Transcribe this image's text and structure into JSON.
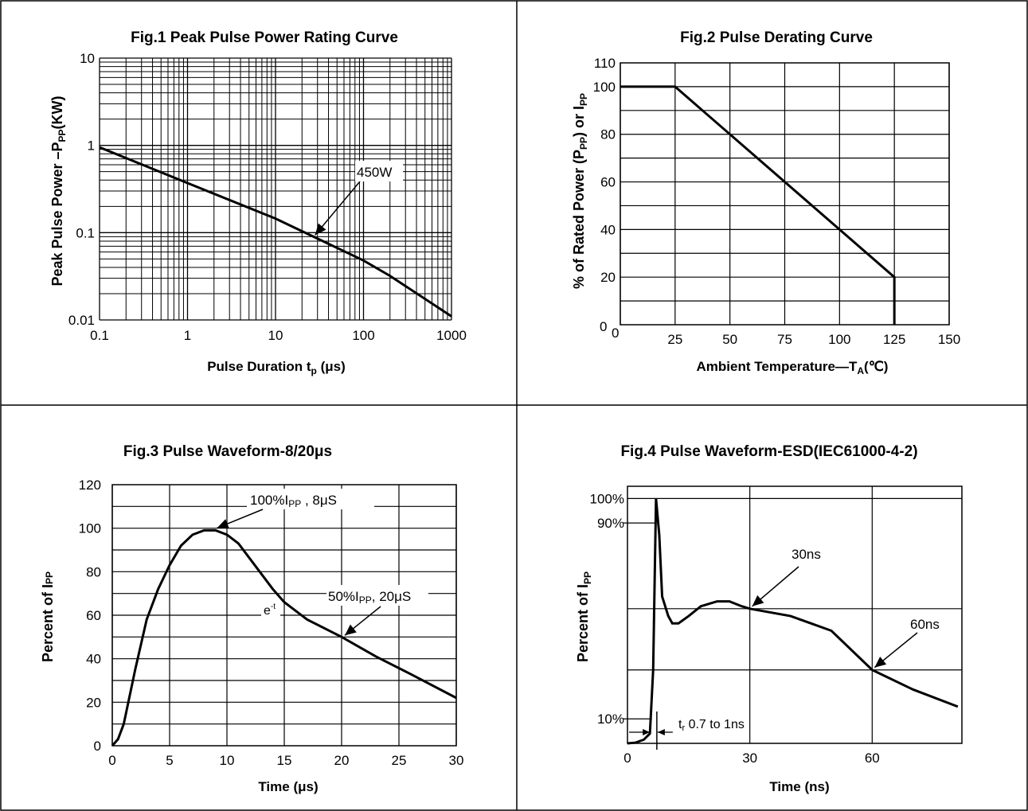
{
  "chart_data": [
    {
      "type": "line",
      "title": "Fig.1 Peak Pulse Power Rating Curve",
      "xlabel": "Pulse Duration t",
      "xlabel_sub": "p",
      "xlabel_unit": " (μs)",
      "ylabel_pre": "Peak Pulse Power –P",
      "ylabel_sub": "PP",
      "ylabel_post": "(KW)",
      "xscale": "log",
      "yscale": "log",
      "xlim": [
        0.1,
        1000
      ],
      "ylim": [
        0.01,
        10
      ],
      "x_ticks": [
        0.1,
        1,
        10,
        100,
        1000
      ],
      "x_tick_labels": [
        "0.1",
        "1",
        "10",
        "100",
        "1000"
      ],
      "y_ticks": [
        0.01,
        0.1,
        1,
        10
      ],
      "y_tick_labels": [
        "0.01",
        "0.1",
        "1",
        "10"
      ],
      "grid": true,
      "series": [
        {
          "x": [
            0.1,
            1,
            10,
            100,
            200,
            1000
          ],
          "y": [
            0.95,
            0.37,
            0.145,
            0.048,
            0.032,
            0.011
          ]
        }
      ],
      "annotations": [
        {
          "text": "450W",
          "x": 27,
          "y": 0.09
        }
      ]
    },
    {
      "type": "line",
      "title": "Fig.2 Pulse Derating Curve",
      "xlabel_pre": "Ambient Temperature—T",
      "xlabel_sub": "A",
      "xlabel_post": "(℃)",
      "ylabel_pre": "% of Rated Power (P",
      "ylabel_sub1": "PP",
      "ylabel_mid": ") or I",
      "ylabel_sub2": "PP",
      "xlim": [
        0,
        150
      ],
      "ylim": [
        0,
        110
      ],
      "x_ticks": [
        0,
        25,
        50,
        75,
        100,
        125,
        150
      ],
      "x_tick_labels": [
        "0",
        "25",
        "50",
        "75",
        "100",
        "125",
        "150"
      ],
      "y_ticks": [
        0,
        20,
        40,
        60,
        80,
        100,
        110
      ],
      "y_tick_labels": [
        "0",
        "20",
        "40",
        "60",
        "80",
        "100",
        "110"
      ],
      "grid": true,
      "series": [
        {
          "x": [
            0,
            25,
            125,
            125
          ],
          "y": [
            100,
            100,
            20,
            0
          ]
        }
      ]
    },
    {
      "type": "line",
      "title": "Fig.3 Pulse Waveform-8/20μs",
      "xlabel": "Time (μs)",
      "ylabel": "Percent of I",
      "ylabel_sub": "PP",
      "xlim": [
        0,
        30
      ],
      "ylim": [
        0,
        120
      ],
      "x_ticks": [
        0,
        5,
        10,
        15,
        20,
        25,
        30
      ],
      "x_tick_labels": [
        "0",
        "5",
        "10",
        "15",
        "20",
        "25",
        "30"
      ],
      "y_ticks": [
        0,
        20,
        40,
        60,
        80,
        100,
        120
      ],
      "y_tick_labels": [
        "0",
        "20",
        "40",
        "60",
        "80",
        "100",
        "120"
      ],
      "grid": true,
      "series": [
        {
          "x": [
            0,
            0.5,
            1,
            2,
            3,
            4,
            5,
            6,
            7,
            8,
            9,
            10,
            11,
            12,
            13,
            14,
            15,
            17,
            20,
            23,
            26,
            30
          ],
          "y": [
            0,
            3,
            10,
            35,
            58,
            72,
            83,
            92,
            97,
            99,
            99,
            97,
            93,
            86,
            79,
            72,
            66,
            58,
            50,
            41,
            33,
            22
          ]
        }
      ],
      "annotations": [
        {
          "text_pre": "100%I",
          "text_sub": "PP",
          "text_post": " , 8μS",
          "x": 9,
          "y": 99
        },
        {
          "text_pre": "50%I",
          "text_sub": "PP",
          "text_post": ", 20μS",
          "x": 20,
          "y": 50
        },
        {
          "text_pre": "e",
          "text_sup": "-t",
          "x": 13.5,
          "y": 72
        }
      ]
    },
    {
      "type": "line",
      "title": "Fig.4 Pulse Waveform-ESD(IEC61000-4-2)",
      "xlabel": "Time (ns)",
      "ylabel": "Percent of I",
      "ylabel_sub": "PP",
      "xlim": [
        0,
        82
      ],
      "ylim": [
        0,
        105
      ],
      "x_ticks": [
        0,
        30,
        60
      ],
      "x_tick_labels": [
        "0",
        "30",
        "60"
      ],
      "y_ticks": [
        10,
        90,
        100
      ],
      "y_tick_labels": [
        "10%",
        "90%",
        "100%"
      ],
      "grid": true,
      "series": [
        {
          "x": [
            0,
            2,
            4,
            5.5,
            6.3,
            7,
            7.8,
            8.5,
            10,
            11,
            12.5,
            15,
            18,
            22,
            25,
            28,
            30,
            40,
            50,
            60,
            70,
            81
          ],
          "y": [
            0,
            0.3,
            1.5,
            4,
            30,
            100,
            85,
            60,
            52,
            49,
            49,
            52,
            56,
            58,
            58,
            56,
            55,
            52,
            46,
            30,
            22,
            15
          ]
        }
      ],
      "annotations": [
        {
          "text": "30ns",
          "x": 30,
          "y": 55
        },
        {
          "text": "60ns",
          "x": 60,
          "y": 30
        },
        {
          "text_pre": "t",
          "text_sub": "r",
          "text_post": " 0.7 to 1ns",
          "x": 7,
          "y": 4
        }
      ]
    }
  ]
}
